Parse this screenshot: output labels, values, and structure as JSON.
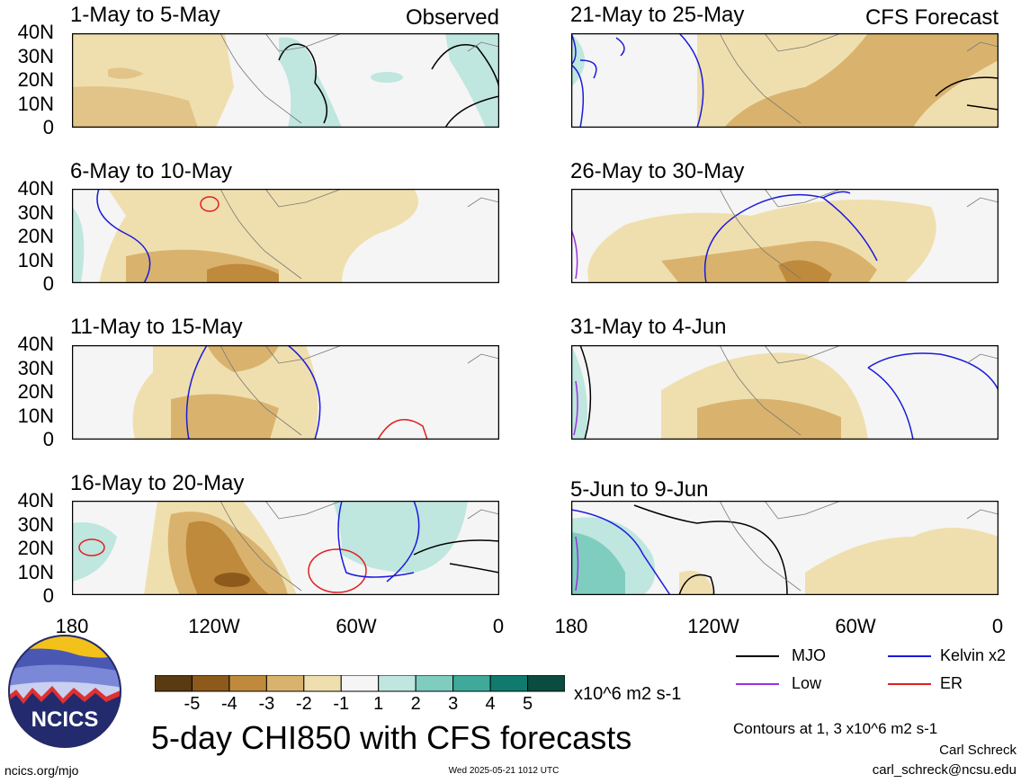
{
  "panels": [
    {
      "id": "p1",
      "title": "1-May to 5-May",
      "label": "Observed"
    },
    {
      "id": "p2",
      "title": "6-May to 10-May",
      "label": ""
    },
    {
      "id": "p3",
      "title": "11-May to 15-May",
      "label": ""
    },
    {
      "id": "p4",
      "title": "16-May to 20-May",
      "label": ""
    },
    {
      "id": "p5",
      "title": "21-May to 25-May",
      "label": "CFS Forecast"
    },
    {
      "id": "p6",
      "title": "26-May to 30-May",
      "label": ""
    },
    {
      "id": "p7",
      "title": "31-May to 4-Jun",
      "label": ""
    },
    {
      "id": "p8",
      "title": "5-Jun to 9-Jun",
      "label": ""
    }
  ],
  "y_ticks": [
    "40N",
    "30N",
    "20N",
    "10N",
    "0"
  ],
  "x_ticks": [
    "180",
    "120W",
    "60W",
    "0"
  ],
  "colorbar": {
    "labels": [
      "-5",
      "-4",
      "-3",
      "-2",
      "-1",
      "1",
      "2",
      "3",
      "4",
      "5"
    ],
    "units": "x10^6 m2 s-1",
    "colors": [
      "#5a3a10",
      "#8d5a1c",
      "#bf8a3c",
      "#d9b36e",
      "#f0dfae",
      "#f5f5f5",
      "#bfe6df",
      "#7fcdbf",
      "#3faa99",
      "#117a6e",
      "#0b4c40"
    ]
  },
  "legend": {
    "mjo": {
      "label": "MJO",
      "color": "#000000"
    },
    "kelvin": {
      "label": "Kelvin x2",
      "color": "#1a1adf"
    },
    "low": {
      "label": "Low",
      "color": "#9b30e0"
    },
    "er": {
      "label": "ER",
      "color": "#e02020"
    }
  },
  "logo_text": "NCICS",
  "main_title": "5-day CHI850 with CFS forecasts",
  "contours_note": "Contours at 1, 3 x10^6 m2 s-1",
  "author": "Carl Schreck",
  "email": "carl_schreck@ncsu.edu",
  "website": "ncics.org/mjo",
  "timestamp": "Wed 2025-05-21 1012 UTC"
}
